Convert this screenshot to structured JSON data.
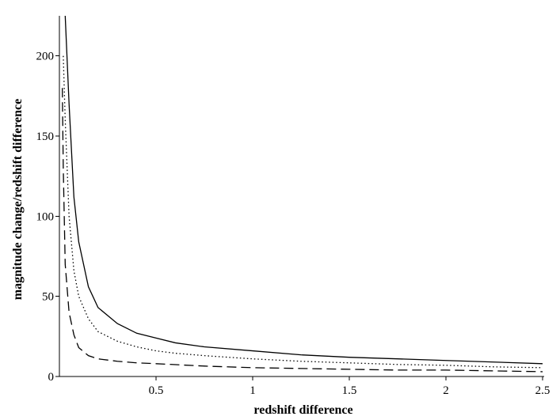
{
  "chart_data": {
    "type": "line",
    "title": "",
    "xlabel": "redshift difference",
    "ylabel": "magnitude change/redshift difference",
    "xlim": [
      0,
      2.5
    ],
    "ylim": [
      0,
      225
    ],
    "x_ticks": [
      {
        "value": 0.5,
        "label": "0.5"
      },
      {
        "value": 1,
        "label": "1"
      },
      {
        "value": 1.5,
        "label": "1.5"
      },
      {
        "value": 2,
        "label": "2"
      },
      {
        "value": 2.5,
        "label": "2.5"
      }
    ],
    "y_ticks": [
      {
        "value": 0,
        "label": "0"
      },
      {
        "value": 50,
        "label": "50"
      },
      {
        "value": 100,
        "label": "100"
      },
      {
        "value": 150,
        "label": "150"
      },
      {
        "value": 200,
        "label": "200"
      }
    ],
    "grid": false,
    "legend": "none",
    "series": [
      {
        "style": "solid",
        "x": [
          0.03,
          0.05,
          0.075,
          0.1,
          0.15,
          0.2,
          0.3,
          0.4,
          0.5,
          0.6,
          0.75,
          1.0,
          1.25,
          1.5,
          1.75,
          2.0,
          2.25,
          2.5
        ],
        "y": [
          225,
          170,
          112,
          84,
          56,
          43,
          33,
          27,
          24,
          21,
          18.5,
          16,
          13.5,
          12,
          11,
          10,
          9,
          8
        ]
      },
      {
        "style": "dotted",
        "x": [
          0.02,
          0.03,
          0.05,
          0.075,
          0.1,
          0.15,
          0.2,
          0.3,
          0.4,
          0.5,
          0.6,
          0.75,
          1.0,
          1.25,
          1.5,
          1.75,
          2.0,
          2.25,
          2.5
        ],
        "y": [
          200,
          160,
          100,
          66,
          50,
          36,
          28,
          22,
          18.5,
          16,
          14.5,
          13,
          11,
          9.5,
          8.5,
          7.5,
          7,
          6,
          5.5
        ]
      },
      {
        "style": "dashed",
        "x": [
          0.015,
          0.02,
          0.03,
          0.05,
          0.075,
          0.1,
          0.15,
          0.2,
          0.3,
          0.4,
          0.5,
          0.75,
          1.0,
          1.25,
          1.5,
          1.75,
          2.0,
          2.25,
          2.5
        ],
        "y": [
          180,
          130,
          70,
          40,
          26,
          18,
          13,
          11,
          9.5,
          8.5,
          8,
          6.5,
          5.5,
          5,
          4.5,
          4,
          4,
          3.5,
          3
        ]
      }
    ]
  }
}
